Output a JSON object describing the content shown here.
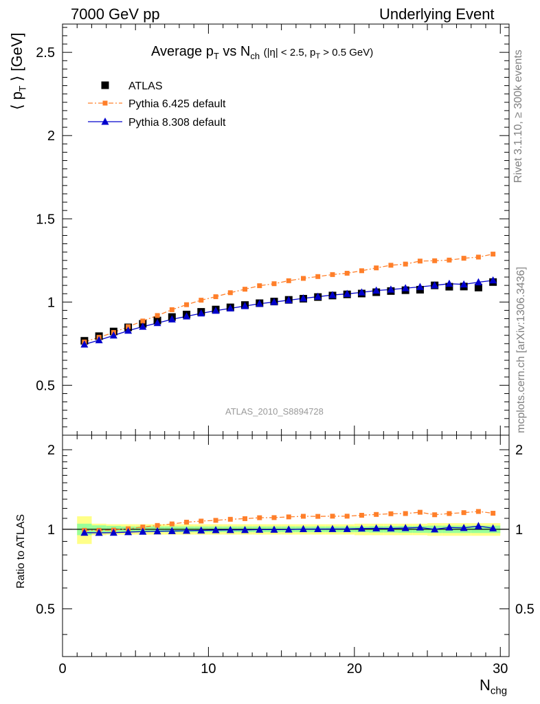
{
  "header": {
    "left": "7000 GeV pp",
    "right": "Underlying Event"
  },
  "side": {
    "rivet": "Rivet 3.1.10, ≥ 300k events",
    "mcplots": "mcplots.cern.ch [arXiv:1306.3436]"
  },
  "watermark": "ATLAS_2010_S8894728",
  "chart_data": [
    {
      "type": "scatter",
      "title": "Average pT vs Nch (|η| < 2.5, pT > 0.5 GeV)",
      "xlabel": "Nchg",
      "ylabel": "⟨ pT ⟩ [GeV]",
      "xlim": [
        0,
        30.6
      ],
      "ylim": [
        0.2,
        2.67
      ],
      "yticks": [
        0.5,
        1,
        1.5,
        2,
        2.5
      ],
      "ytick_labels": [
        "0.5",
        "1",
        "1.5",
        "2",
        "2.5"
      ],
      "legend": [
        "ATLAS",
        "Pythia 6.425 default",
        "Pythia 8.308 default"
      ],
      "legend_position": "top-left",
      "x": [
        1.5,
        2.5,
        3.5,
        4.5,
        5.5,
        6.5,
        7.5,
        8.5,
        9.5,
        10.5,
        11.5,
        12.5,
        13.5,
        14.5,
        15.5,
        16.5,
        17.5,
        18.5,
        19.5,
        20.5,
        21.5,
        22.5,
        23.5,
        24.5,
        25.5,
        26.5,
        27.5,
        28.5,
        29.5
      ],
      "series": [
        {
          "name": "ATLAS",
          "color": "#000000",
          "marker": "square",
          "values": [
            0.767,
            0.795,
            0.823,
            0.848,
            0.869,
            0.889,
            0.91,
            0.925,
            0.941,
            0.955,
            0.968,
            0.982,
            0.993,
            1.003,
            1.013,
            1.02,
            1.03,
            1.039,
            1.046,
            1.051,
            1.059,
            1.066,
            1.071,
            1.074,
            1.1,
            1.092,
            1.093,
            1.087,
            1.12
          ]
        },
        {
          "name": "Pythia 6.425 default",
          "color": "#ff7f2a",
          "marker": "square-small",
          "line": "dash-dot",
          "values": [
            0.76,
            0.788,
            0.817,
            0.852,
            0.886,
            0.919,
            0.954,
            0.984,
            1.011,
            1.032,
            1.056,
            1.077,
            1.098,
            1.11,
            1.128,
            1.142,
            1.153,
            1.165,
            1.173,
            1.188,
            1.205,
            1.221,
            1.228,
            1.246,
            1.248,
            1.252,
            1.263,
            1.27,
            1.288
          ]
        },
        {
          "name": "Pythia 8.308 default",
          "color": "#0000cc",
          "marker": "triangle",
          "line": "solid",
          "values": [
            0.745,
            0.771,
            0.799,
            0.828,
            0.852,
            0.874,
            0.896,
            0.914,
            0.932,
            0.948,
            0.962,
            0.976,
            0.99,
            1.0,
            1.011,
            1.022,
            1.032,
            1.042,
            1.049,
            1.058,
            1.069,
            1.075,
            1.083,
            1.091,
            1.1,
            1.11,
            1.106,
            1.119,
            1.13
          ]
        }
      ]
    },
    {
      "type": "scatter",
      "ylabel": "Ratio to ATLAS",
      "xlabel": "Nchg",
      "xlim": [
        0,
        30.6
      ],
      "ylim": [
        0.33,
        2.27
      ],
      "log_y": true,
      "xticks": [
        0,
        10,
        20,
        30
      ],
      "xtick_labels": [
        "0",
        "10",
        "20",
        "30"
      ],
      "yticks": [
        0.5,
        1,
        2
      ],
      "ytick_labels": [
        "0.5",
        "1",
        "2"
      ],
      "band_colors": {
        "inner": "#99ff99",
        "outer": "#ffff88"
      },
      "band_inner_rel": [
        0.05,
        0.035,
        0.03,
        0.025,
        0.025,
        0.025,
        0.025,
        0.025,
        0.025,
        0.025,
        0.025,
        0.025,
        0.025,
        0.025,
        0.025,
        0.025,
        0.025,
        0.025,
        0.025,
        0.025,
        0.028,
        0.028,
        0.03,
        0.03,
        0.032,
        0.032,
        0.032,
        0.032,
        0.032
      ],
      "band_outer_rel": [
        0.12,
        0.05,
        0.045,
        0.045,
        0.045,
        0.045,
        0.045,
        0.045,
        0.045,
        0.045,
        0.045,
        0.045,
        0.045,
        0.045,
        0.045,
        0.045,
        0.045,
        0.045,
        0.045,
        0.05,
        0.05,
        0.05,
        0.05,
        0.05,
        0.055,
        0.055,
        0.055,
        0.055,
        0.055
      ],
      "x": [
        1.5,
        2.5,
        3.5,
        4.5,
        5.5,
        6.5,
        7.5,
        8.5,
        9.5,
        10.5,
        11.5,
        12.5,
        13.5,
        14.5,
        15.5,
        16.5,
        17.5,
        18.5,
        19.5,
        20.5,
        21.5,
        22.5,
        23.5,
        24.5,
        25.5,
        26.5,
        27.5,
        28.5,
        29.5
      ],
      "series": [
        {
          "name": "Pythia 6.425 default",
          "color": "#ff7f2a",
          "values": [
            0.991,
            0.991,
            0.993,
            1.005,
            1.02,
            1.034,
            1.048,
            1.064,
            1.074,
            1.081,
            1.091,
            1.097,
            1.106,
            1.107,
            1.114,
            1.12,
            1.119,
            1.121,
            1.121,
            1.13,
            1.138,
            1.145,
            1.147,
            1.16,
            1.135,
            1.147,
            1.156,
            1.168,
            1.15
          ]
        },
        {
          "name": "Pythia 8.308 default",
          "color": "#0000cc",
          "values": [
            0.971,
            0.97,
            0.971,
            0.976,
            0.98,
            0.983,
            0.985,
            0.988,
            0.99,
            0.993,
            0.994,
            0.994,
            0.997,
            0.997,
            0.998,
            1.002,
            1.002,
            1.003,
            1.003,
            1.007,
            1.009,
            1.008,
            1.011,
            1.016,
            1.0,
            1.016,
            1.012,
            1.029,
            1.009
          ]
        }
      ]
    }
  ]
}
